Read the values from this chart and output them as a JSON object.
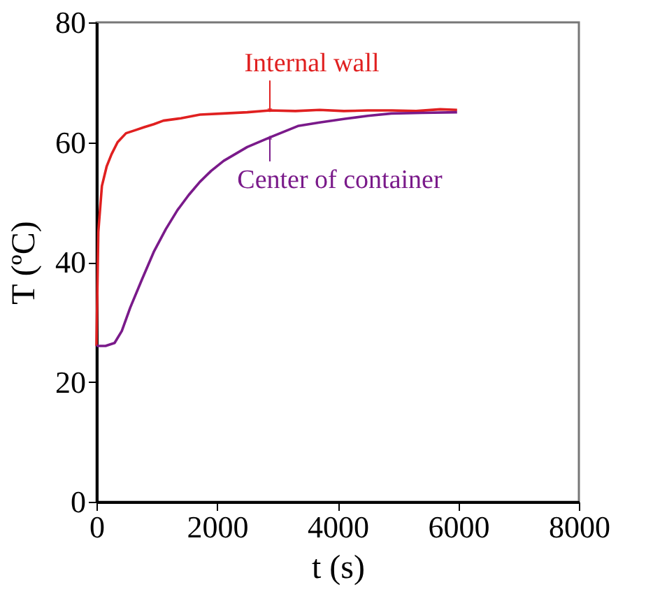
{
  "chart_data": {
    "type": "line",
    "xlabel": "t (s)",
    "ylabel": "T (ºC)",
    "xlim": [
      0,
      8000
    ],
    "ylim": [
      0,
      80
    ],
    "xticks": [
      0,
      2000,
      4000,
      6000,
      8000
    ],
    "yticks": [
      0,
      20,
      40,
      60,
      80
    ],
    "grid": false,
    "marker": "none",
    "line_style": "solid",
    "series": [
      {
        "name": "Internal wall",
        "color": "#e02020",
        "x": [
          0,
          30,
          90,
          170,
          250,
          350,
          490,
          640,
          790,
          950,
          1110,
          1400,
          1716,
          2100,
          2500,
          2875,
          3300,
          3700,
          4100,
          4500,
          4900,
          5300,
          5700,
          5980
        ],
        "values": [
          26,
          45,
          52.7,
          56,
          58,
          60,
          61.5,
          62,
          62.5,
          63,
          63.6,
          64,
          64.6,
          64.8,
          65,
          65.3,
          65.2,
          65.4,
          65.2,
          65.3,
          65.3,
          65.2,
          65.5,
          65.4
        ]
      },
      {
        "name": "Center of container",
        "color": "#7a1a8a",
        "x": [
          0,
          150,
          300,
          420,
          560,
          750,
          950,
          1150,
          1345,
          1530,
          1716,
          1900,
          2110,
          2500,
          2875,
          3340,
          3700,
          4120,
          4500,
          4890,
          5400,
          5980
        ],
        "values": [
          26,
          26,
          26.5,
          28.5,
          32.4,
          37,
          41.7,
          45.5,
          48.7,
          51.2,
          53.4,
          55.2,
          56.9,
          59.2,
          60.8,
          62.7,
          63.3,
          63.9,
          64.4,
          64.8,
          64.9,
          65.0
        ]
      }
    ]
  }
}
